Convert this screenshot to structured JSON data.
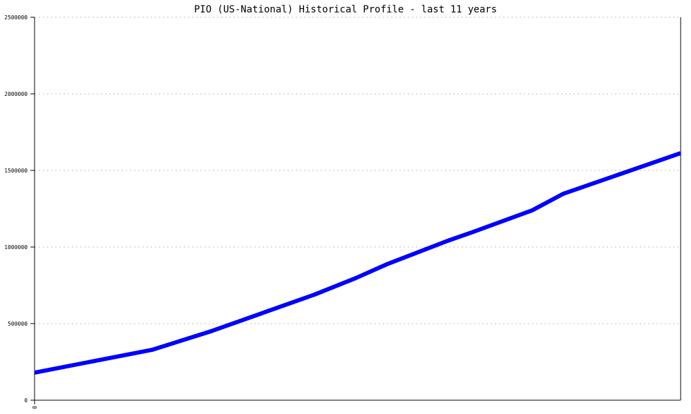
{
  "chart_data": {
    "type": "line",
    "title": "PIO (US-National) Historical Profile - last 11 years",
    "xlabel": "",
    "ylabel": "",
    "x_tick_labels": [
      "0"
    ],
    "ylim": [
      0,
      2500000
    ],
    "y_ticks": [
      0,
      500000,
      1000000,
      1500000,
      2000000,
      2500000
    ],
    "y_tick_labels": [
      "0",
      "500000",
      "1000000",
      "1500000",
      "2000000",
      "2500000"
    ],
    "grid": true,
    "series": [
      {
        "color": "#0000ff",
        "x": [
          0,
          0.182,
          0.273,
          0.433,
          0.497,
          0.545,
          0.639,
          0.679,
          0.77,
          0.818,
          1.0
        ],
        "values": [
          180000,
          329000,
          450000,
          689000,
          797000,
          887000,
          1040000,
          1099000,
          1239000,
          1347000,
          1613000
        ]
      }
    ]
  }
}
